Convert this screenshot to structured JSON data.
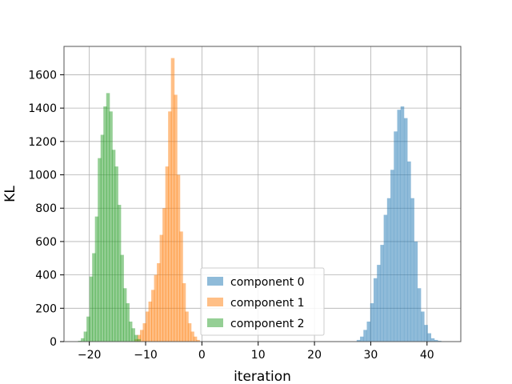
{
  "chart_data": {
    "type": "bar",
    "title": "",
    "xlabel": "iteration",
    "ylabel": "KL",
    "xlim": [
      -24.5,
      46
    ],
    "ylim": [
      0,
      1770
    ],
    "xticks": [
      -20,
      -10,
      0,
      10,
      20,
      30,
      40
    ],
    "yticks": [
      0,
      200,
      400,
      600,
      800,
      1000,
      1200,
      1400,
      1600
    ],
    "grid": true,
    "legend_position": "lower-center",
    "bin_width": 0.6,
    "series": [
      {
        "name": "component 0",
        "color": "#1f77b4",
        "opacity": 0.5,
        "bins": [
          {
            "x": 27.5,
            "count": 10
          },
          {
            "x": 28.1,
            "count": 30
          },
          {
            "x": 28.7,
            "count": 70
          },
          {
            "x": 29.3,
            "count": 120
          },
          {
            "x": 29.9,
            "count": 230
          },
          {
            "x": 30.5,
            "count": 380
          },
          {
            "x": 31.1,
            "count": 460
          },
          {
            "x": 31.7,
            "count": 580
          },
          {
            "x": 32.3,
            "count": 760
          },
          {
            "x": 32.9,
            "count": 860
          },
          {
            "x": 33.5,
            "count": 1030
          },
          {
            "x": 34.1,
            "count": 1260
          },
          {
            "x": 34.7,
            "count": 1390
          },
          {
            "x": 35.3,
            "count": 1410
          },
          {
            "x": 35.9,
            "count": 1340
          },
          {
            "x": 36.5,
            "count": 1080
          },
          {
            "x": 37.1,
            "count": 860
          },
          {
            "x": 37.7,
            "count": 600
          },
          {
            "x": 38.3,
            "count": 320
          },
          {
            "x": 38.9,
            "count": 180
          },
          {
            "x": 39.5,
            "count": 100
          },
          {
            "x": 40.1,
            "count": 50
          },
          {
            "x": 40.7,
            "count": 20
          },
          {
            "x": 41.3,
            "count": 10
          },
          {
            "x": 41.9,
            "count": 5
          }
        ]
      },
      {
        "name": "component 1",
        "color": "#ff7f0e",
        "opacity": 0.5,
        "bins": [
          {
            "x": -12.0,
            "count": 15
          },
          {
            "x": -11.5,
            "count": 40
          },
          {
            "x": -11.0,
            "count": 70
          },
          {
            "x": -10.5,
            "count": 110
          },
          {
            "x": -10.0,
            "count": 180
          },
          {
            "x": -9.5,
            "count": 240
          },
          {
            "x": -9.0,
            "count": 310
          },
          {
            "x": -8.5,
            "count": 400
          },
          {
            "x": -8.0,
            "count": 470
          },
          {
            "x": -7.5,
            "count": 640
          },
          {
            "x": -7.0,
            "count": 800
          },
          {
            "x": -6.5,
            "count": 1050
          },
          {
            "x": -6.0,
            "count": 1380
          },
          {
            "x": -5.5,
            "count": 1700
          },
          {
            "x": -5.0,
            "count": 1480
          },
          {
            "x": -4.5,
            "count": 1000
          },
          {
            "x": -4.0,
            "count": 660
          },
          {
            "x": -3.5,
            "count": 350
          },
          {
            "x": -3.0,
            "count": 180
          },
          {
            "x": -2.5,
            "count": 110
          },
          {
            "x": -2.0,
            "count": 60
          },
          {
            "x": -1.5,
            "count": 30
          },
          {
            "x": -1.0,
            "count": 10
          }
        ]
      },
      {
        "name": "component 2",
        "color": "#2ca02c",
        "opacity": 0.5,
        "bins": [
          {
            "x": -22.0,
            "count": 5
          },
          {
            "x": -21.5,
            "count": 20
          },
          {
            "x": -21.0,
            "count": 60
          },
          {
            "x": -20.5,
            "count": 150
          },
          {
            "x": -20.0,
            "count": 390
          },
          {
            "x": -19.5,
            "count": 530
          },
          {
            "x": -19.0,
            "count": 750
          },
          {
            "x": -18.5,
            "count": 1100
          },
          {
            "x": -18.0,
            "count": 1240
          },
          {
            "x": -17.5,
            "count": 1410
          },
          {
            "x": -17.0,
            "count": 1490
          },
          {
            "x": -16.5,
            "count": 1380
          },
          {
            "x": -16.0,
            "count": 1150
          },
          {
            "x": -15.5,
            "count": 1050
          },
          {
            "x": -15.0,
            "count": 820
          },
          {
            "x": -14.5,
            "count": 520
          },
          {
            "x": -14.0,
            "count": 320
          },
          {
            "x": -13.5,
            "count": 230
          },
          {
            "x": -13.0,
            "count": 120
          },
          {
            "x": -12.5,
            "count": 80
          },
          {
            "x": -12.0,
            "count": 40
          },
          {
            "x": -11.5,
            "count": 15
          }
        ]
      }
    ]
  }
}
